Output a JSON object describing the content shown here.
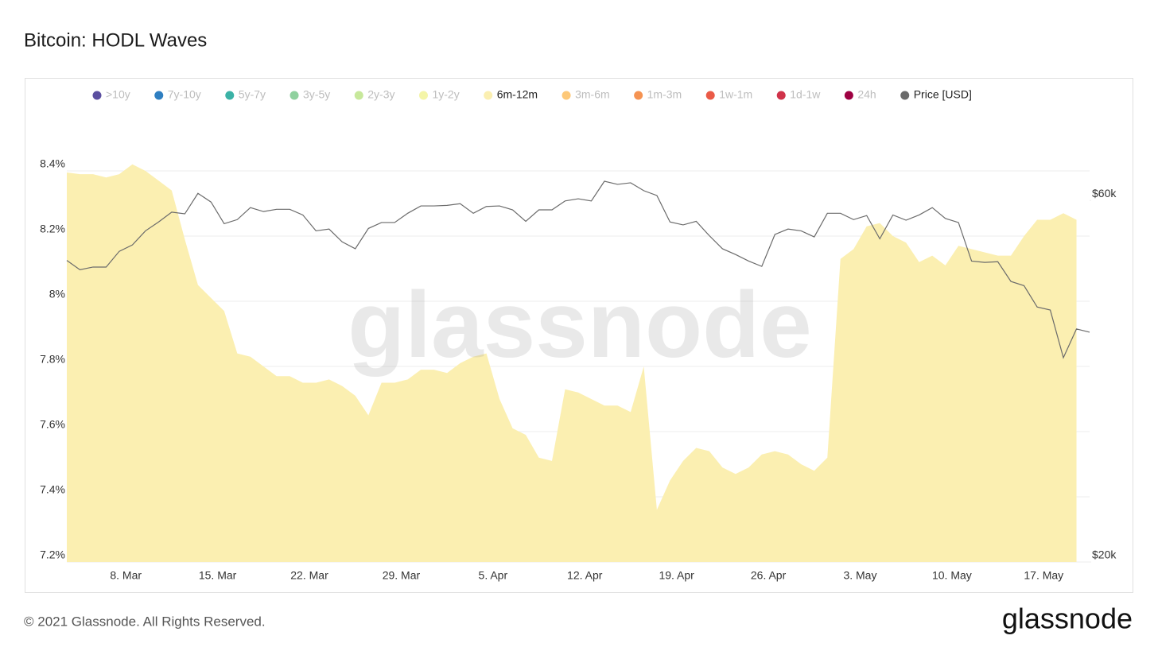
{
  "chart_data": {
    "type": "area",
    "title": "Bitcoin: HODL Waves",
    "watermark": "glassnode",
    "footer": "© 2021 Glassnode. All Rights Reserved.",
    "logo": "glassnode",
    "categories": [
      null,
      null,
      null,
      null,
      null,
      "8. Mar",
      null,
      null,
      null,
      null,
      null,
      null,
      "15. Mar",
      null,
      null,
      null,
      null,
      null,
      null,
      "22. Mar",
      null,
      null,
      null,
      null,
      null,
      null,
      "29. Mar",
      null,
      null,
      null,
      null,
      null,
      null,
      "5. Apr",
      null,
      null,
      null,
      null,
      null,
      null,
      "12. Apr",
      null,
      null,
      null,
      null,
      null,
      null,
      "19. Apr",
      null,
      null,
      null,
      null,
      null,
      null,
      "26. Apr",
      null,
      null,
      null,
      null,
      null,
      null,
      "3. May",
      null,
      null,
      null,
      null,
      null,
      null,
      "10. May",
      null,
      null,
      null,
      null,
      null,
      null,
      "17. May",
      null,
      null,
      null
    ],
    "ylim": [
      7.2,
      8.6
    ],
    "yticks": [
      {
        "value": 7.2,
        "label": "7.2%"
      },
      {
        "value": 7.4,
        "label": "7.4%"
      },
      {
        "value": 7.6,
        "label": "7.6%"
      },
      {
        "value": 7.8,
        "label": "7.8%"
      },
      {
        "value": 8.0,
        "label": "8%"
      },
      {
        "value": 8.2,
        "label": "8.2%"
      },
      {
        "value": 8.4,
        "label": "8.4%"
      }
    ],
    "y2lim": [
      20000,
      80000
    ],
    "y2_log": true,
    "y2ticks": [
      {
        "value": 20000,
        "label": "$20k"
      },
      {
        "value": 60000,
        "label": "$60k"
      }
    ],
    "grid": true,
    "series": [
      {
        "name": ">10y",
        "color": "#5b4fa0",
        "visible": false
      },
      {
        "name": "7y-10y",
        "color": "#2f7fc1",
        "visible": false
      },
      {
        "name": "5y-7y",
        "color": "#3bb2a6",
        "visible": false
      },
      {
        "name": "3y-5y",
        "color": "#8fd19e",
        "visible": false
      },
      {
        "name": "2y-3y",
        "color": "#c7e89b",
        "visible": false
      },
      {
        "name": "1y-2y",
        "color": "#f4f5a8",
        "visible": false
      },
      {
        "name": "6m-12m",
        "color": "#fbefb1",
        "visible": true,
        "values": [
          8.395,
          8.39,
          8.39,
          8.38,
          8.39,
          8.42,
          8.4,
          8.37,
          8.34,
          8.19,
          8.05,
          8.01,
          7.97,
          7.84,
          7.83,
          7.8,
          7.77,
          7.77,
          7.75,
          7.75,
          7.76,
          7.74,
          7.71,
          7.65,
          7.75,
          7.75,
          7.76,
          7.79,
          7.79,
          7.78,
          7.81,
          7.83,
          7.84,
          7.7,
          7.61,
          7.59,
          7.52,
          7.51,
          7.73,
          7.72,
          7.7,
          7.68,
          7.68,
          7.66,
          7.8,
          7.36,
          7.45,
          7.51,
          7.55,
          7.54,
          7.49,
          7.47,
          7.49,
          7.53,
          7.54,
          7.53,
          7.5,
          7.48,
          7.52,
          8.13,
          8.16,
          8.23,
          8.24,
          8.2,
          8.18,
          8.12,
          8.14,
          8.11,
          8.17,
          8.16,
          8.15,
          8.14,
          8.14,
          8.2,
          8.25,
          8.25,
          8.27,
          8.25,
          null
        ]
      },
      {
        "name": "3m-6m",
        "color": "#fdc878",
        "visible": false
      },
      {
        "name": "1m-3m",
        "color": "#f59352",
        "visible": false
      },
      {
        "name": "1w-1m",
        "color": "#ea5a47",
        "visible": false
      },
      {
        "name": "1d-1w",
        "color": "#d0334a",
        "visible": false
      },
      {
        "name": "24h",
        "color": "#9e0142",
        "visible": false
      },
      {
        "name": "Price [USD]",
        "color": "#6b6b6b",
        "visible": true,
        "axis": "y2",
        "values": [
          50000,
          48600,
          49000,
          49000,
          51400,
          52400,
          54700,
          56200,
          57900,
          57600,
          61300,
          59700,
          55900,
          56600,
          58700,
          58000,
          58400,
          58400,
          57400,
          54700,
          55000,
          52900,
          51800,
          55100,
          56100,
          56100,
          57700,
          59000,
          59000,
          59100,
          59400,
          57700,
          58900,
          59000,
          58300,
          56300,
          58300,
          58300,
          59900,
          60300,
          59900,
          63600,
          63000,
          63300,
          61800,
          60900,
          56200,
          55700,
          56300,
          53900,
          51800,
          50900,
          49900,
          49100,
          54100,
          55000,
          54700,
          53700,
          57700,
          57700,
          56600,
          57300,
          53400,
          57400,
          56500,
          57400,
          58700,
          56800,
          56100,
          49900,
          49700,
          49800,
          46900,
          46300,
          43400,
          43000,
          37200,
          40600,
          40200
        ]
      }
    ]
  }
}
